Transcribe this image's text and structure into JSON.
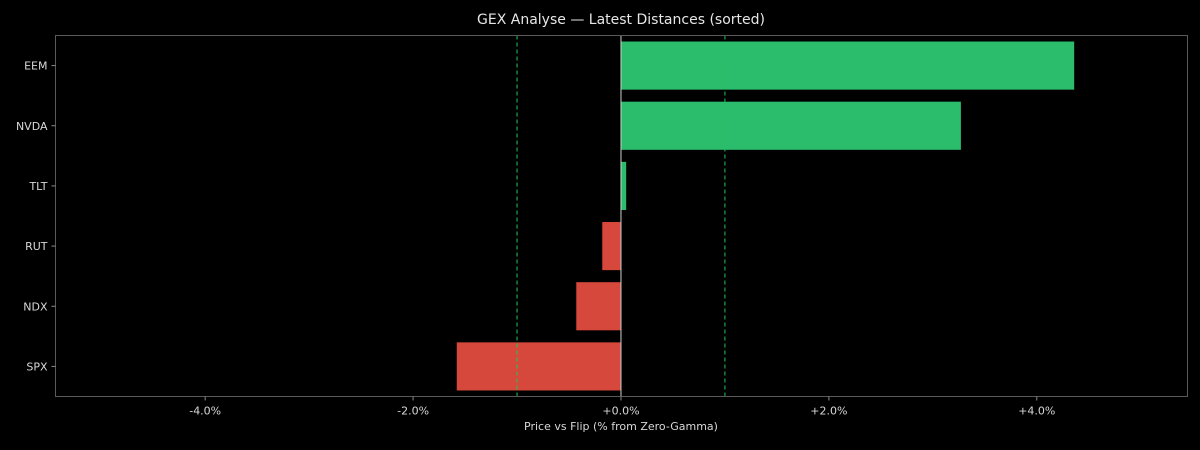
{
  "figure": {
    "background": "#000000",
    "text_color": "#e0e0e0",
    "spine_color": "#5a5a5a"
  },
  "chart_data": {
    "type": "bar",
    "orientation": "horizontal",
    "title": "GEX Analyse — Latest Distances (sorted)",
    "xlabel": "Price vs Flip (% from Zero-Gamma)",
    "ylabel": "",
    "categories": [
      "EEM",
      "NVDA",
      "TLT",
      "RUT",
      "NDX",
      "SPX"
    ],
    "values": [
      4.36,
      3.27,
      0.05,
      -0.18,
      -0.43,
      -1.58
    ],
    "positive_color": "#2bbd6b",
    "negative_color": "#d5483b",
    "xlim": [
      -5.44,
      5.45
    ],
    "xticks": [
      -4.0,
      -2.0,
      0.0,
      2.0,
      4.0
    ],
    "xtick_labels": [
      "-4.0%",
      "-2.0%",
      "+0.0%",
      "+2.0%",
      "+4.0%"
    ],
    "reference_lines": [
      {
        "x": 0.0,
        "style": "solid",
        "color": "#cfcfcf"
      },
      {
        "x": -1.0,
        "style": "dashed",
        "color": "#22c55e"
      },
      {
        "x": 1.0,
        "style": "dashed",
        "color": "#22c55e"
      }
    ],
    "grid": false,
    "legend": null
  }
}
